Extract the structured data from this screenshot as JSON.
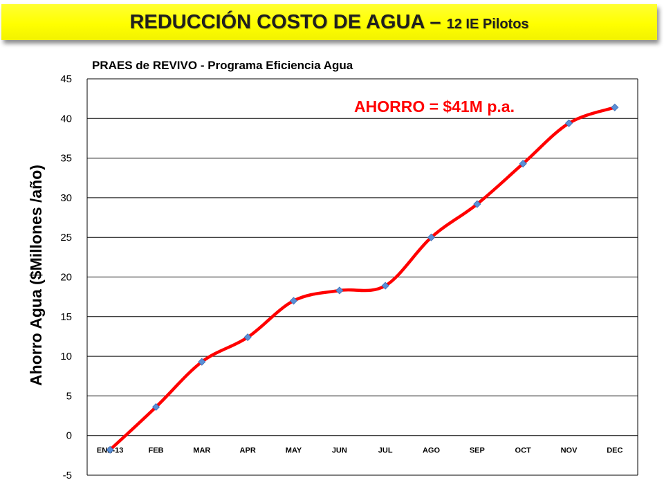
{
  "header": {
    "title_main": "REDUCCIÓN COSTO DE AGUA",
    "title_sep": " – ",
    "title_sub": "12 IE Pilotos"
  },
  "chart_data": {
    "type": "line",
    "title": "PRAES de REVIVO - Programa Eficiencia Agua",
    "xlabel": "",
    "ylabel": "Ahorro Agua ($Millones /año)",
    "ylim": [
      -5,
      45
    ],
    "yticks": [
      -5,
      0,
      5,
      10,
      15,
      20,
      25,
      30,
      35,
      40,
      45
    ],
    "categories": [
      "ENE-13",
      "FEB",
      "MAR",
      "APR",
      "MAY",
      "JUN",
      "JUL",
      "AGO",
      "SEP",
      "OCT",
      "NOV",
      "DEC"
    ],
    "series": [
      {
        "values": [
          -1.8,
          3.6,
          9.3,
          12.4,
          17.0,
          18.3,
          18.9,
          25.0,
          29.2,
          34.3,
          39.4,
          41.4
        ],
        "line_color": "#ff0000",
        "marker_color": "#5b8fd6",
        "smooth": true
      }
    ],
    "annotation": "AHORRO = $41M p.a.",
    "grid": true,
    "legend": "none"
  }
}
